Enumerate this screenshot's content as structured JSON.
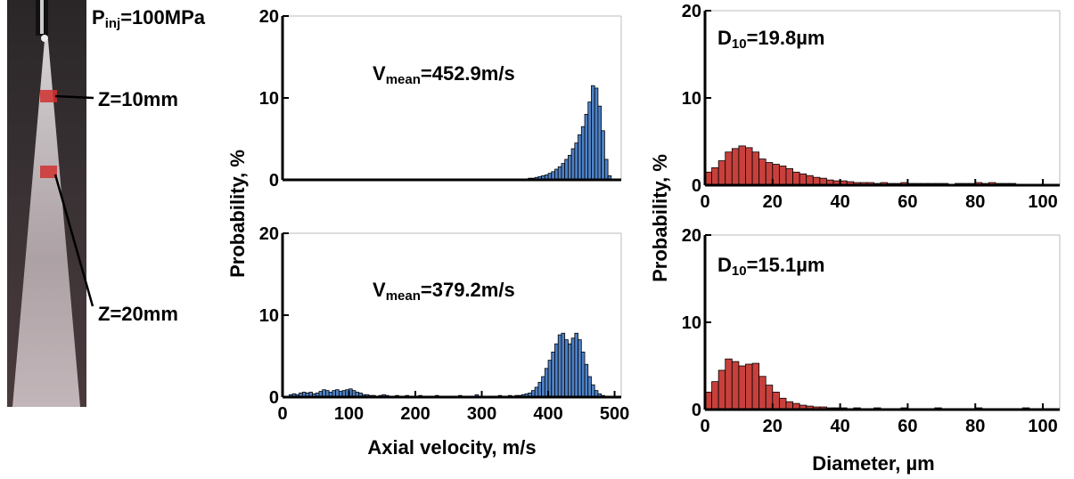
{
  "labels": {
    "pressure": {
      "base": "P",
      "sub": "inj",
      "rest": "=100MPa"
    },
    "z_labels": [
      "Z=10mm",
      "Z=20mm"
    ],
    "velocity_ylabel": "Probability, %",
    "velocity_xlabel": "Axial velocity, m/s",
    "diameter_ylabel": "Probability, %",
    "diameter_xlabel": "Diameter, µm"
  },
  "chart_data": [
    {
      "type": "histogram",
      "color": "#4f82c6",
      "annotation": {
        "base": "V",
        "sub": "mean",
        "rest": "=452.9m/s"
      },
      "bins": [
        360,
        365,
        370,
        375,
        380,
        385,
        390,
        395,
        400,
        405,
        410,
        415,
        420,
        425,
        430,
        435,
        440,
        445,
        450,
        455,
        460,
        465,
        470,
        475,
        480,
        485,
        490,
        495,
        500
      ],
      "counts": [
        0.1,
        0.1,
        0.2,
        0.2,
        0.3,
        0.4,
        0.5,
        0.6,
        0.8,
        1.0,
        1.3,
        1.6,
        2.0,
        2.5,
        3.0,
        3.8,
        4.5,
        5.5,
        6.5,
        8.0,
        9.5,
        11.5,
        11.2,
        9.0,
        6.0,
        2.5,
        0.5,
        0.1
      ],
      "xlim": [
        0,
        510
      ],
      "ylim": [
        0,
        20
      ],
      "yticks": [
        0,
        10,
        20
      ]
    },
    {
      "type": "histogram",
      "color": "#4f82c6",
      "annotation": {
        "base": "V",
        "sub": "mean",
        "rest": "=379.2m/s"
      },
      "bins": [
        10,
        15,
        20,
        25,
        30,
        35,
        40,
        45,
        50,
        55,
        60,
        65,
        70,
        75,
        80,
        85,
        90,
        95,
        100,
        105,
        110,
        115,
        120,
        125,
        130,
        135,
        140,
        145,
        150,
        155,
        160,
        165,
        170,
        175,
        180,
        185,
        190,
        195,
        200,
        205,
        210,
        215,
        220,
        225,
        230,
        235,
        240,
        245,
        250,
        255,
        260,
        265,
        270,
        275,
        280,
        285,
        290,
        295,
        300,
        305,
        310,
        315,
        320,
        325,
        330,
        335,
        340,
        345,
        350,
        355,
        360,
        365,
        370,
        375,
        380,
        385,
        390,
        395,
        400,
        405,
        410,
        415,
        420,
        425,
        430,
        435,
        440,
        445,
        450,
        455,
        460,
        465,
        470,
        475,
        480,
        485,
        490
      ],
      "counts": [
        0.3,
        0.4,
        0.3,
        0.5,
        0.6,
        0.5,
        0.6,
        0.4,
        0.5,
        0.7,
        0.9,
        0.8,
        0.6,
        0.8,
        0.9,
        0.7,
        0.8,
        0.9,
        1.0,
        0.8,
        0.6,
        0.5,
        0.3,
        0.3,
        0.2,
        0.2,
        0.1,
        0.2,
        0.3,
        0.2,
        0.1,
        0.1,
        0.2,
        0.1,
        0.1,
        0.2,
        0.1,
        0.1,
        0.1,
        0.2,
        0.1,
        0.1,
        0.1,
        0.1,
        0.2,
        0.1,
        0.1,
        0.1,
        0.1,
        0.1,
        0.1,
        0.2,
        0.1,
        0.1,
        0.1,
        0.1,
        0.3,
        0.1,
        0.1,
        0.1,
        0.1,
        0.1,
        0.1,
        0.2,
        0.1,
        0.1,
        0.2,
        0.1,
        0.2,
        0.2,
        0.3,
        0.4,
        0.5,
        0.8,
        1.2,
        1.8,
        2.5,
        3.5,
        4.5,
        5.5,
        6.5,
        7.6,
        7.8,
        7.0,
        6.5,
        7.2,
        7.8,
        7.0,
        5.5,
        4.0,
        2.5,
        1.5,
        0.8,
        0.4,
        0.2,
        0.1
      ],
      "xlim": [
        0,
        510
      ],
      "xticks": [
        0,
        100,
        200,
        300,
        400,
        500
      ],
      "ylim": [
        0,
        20
      ],
      "yticks": [
        0,
        10,
        20
      ]
    },
    {
      "type": "histogram",
      "color": "#c8403c",
      "annotation": {
        "base": "D",
        "sub": "10",
        "rest": "=19.8µm"
      },
      "bins": [
        0,
        2,
        4,
        6,
        8,
        10,
        12,
        14,
        16,
        18,
        20,
        22,
        24,
        26,
        28,
        30,
        32,
        34,
        36,
        38,
        40,
        42,
        44,
        46,
        48,
        50,
        52,
        54,
        56,
        58,
        60,
        62,
        64,
        66,
        68,
        70,
        72,
        74,
        76,
        78,
        80,
        82,
        84,
        86,
        88,
        90,
        92,
        94,
        96,
        98,
        100
      ],
      "counts": [
        1.5,
        2.0,
        2.8,
        3.8,
        4.2,
        4.5,
        4.3,
        3.8,
        3.0,
        2.6,
        2.4,
        2.2,
        1.9,
        1.5,
        1.3,
        1.1,
        0.9,
        0.8,
        0.6,
        0.5,
        0.5,
        0.4,
        0.3,
        0.3,
        0.3,
        0.2,
        0.3,
        0.2,
        0.2,
        0.3,
        0.2,
        0.2,
        0.2,
        0.2,
        0.2,
        0.2,
        0.1,
        0.2,
        0.2,
        0.2,
        0.3,
        0.2,
        0.3,
        0.2,
        0.2,
        0.2,
        0.1,
        0.1,
        0.1,
        0.1
      ],
      "xlim": [
        0,
        105
      ],
      "xticks": [
        0,
        20,
        40,
        60,
        80,
        100
      ],
      "ylim": [
        0,
        20
      ],
      "yticks": [
        0,
        10,
        20
      ]
    },
    {
      "type": "histogram",
      "color": "#c8403c",
      "annotation": {
        "base": "D",
        "sub": "10",
        "rest": "=15.1µm"
      },
      "bins": [
        0,
        2,
        4,
        6,
        8,
        10,
        12,
        14,
        16,
        18,
        20,
        22,
        24,
        26,
        28,
        30,
        32,
        34,
        36,
        38,
        40,
        42,
        44,
        46,
        48,
        50,
        52,
        54,
        56,
        58,
        60,
        62,
        64,
        66,
        68,
        70,
        72,
        74,
        76,
        78,
        80,
        82,
        84,
        86,
        88,
        90,
        92,
        94,
        96,
        98,
        100
      ],
      "counts": [
        2.0,
        3.2,
        4.5,
        5.8,
        5.5,
        5.0,
        5.2,
        5.3,
        3.8,
        2.8,
        2.0,
        1.3,
        0.9,
        0.7,
        0.5,
        0.4,
        0.3,
        0.3,
        0.2,
        0.2,
        0.2,
        0.1,
        0.2,
        0.1,
        0.1,
        0.2,
        0.1,
        0.1,
        0.1,
        0.2,
        0.1,
        0.1,
        0.1,
        0.1,
        0.2,
        0.1,
        0.1,
        0.1,
        0.1,
        0.1,
        0.2,
        0.1,
        0.1,
        0.1,
        0.1,
        0.1,
        0.1,
        0.2,
        0.1,
        0.1
      ],
      "xlim": [
        0,
        105
      ],
      "xticks": [
        0,
        20,
        40,
        60,
        80,
        100
      ],
      "ylim": [
        0,
        20
      ],
      "yticks": [
        0,
        10,
        20
      ]
    }
  ]
}
